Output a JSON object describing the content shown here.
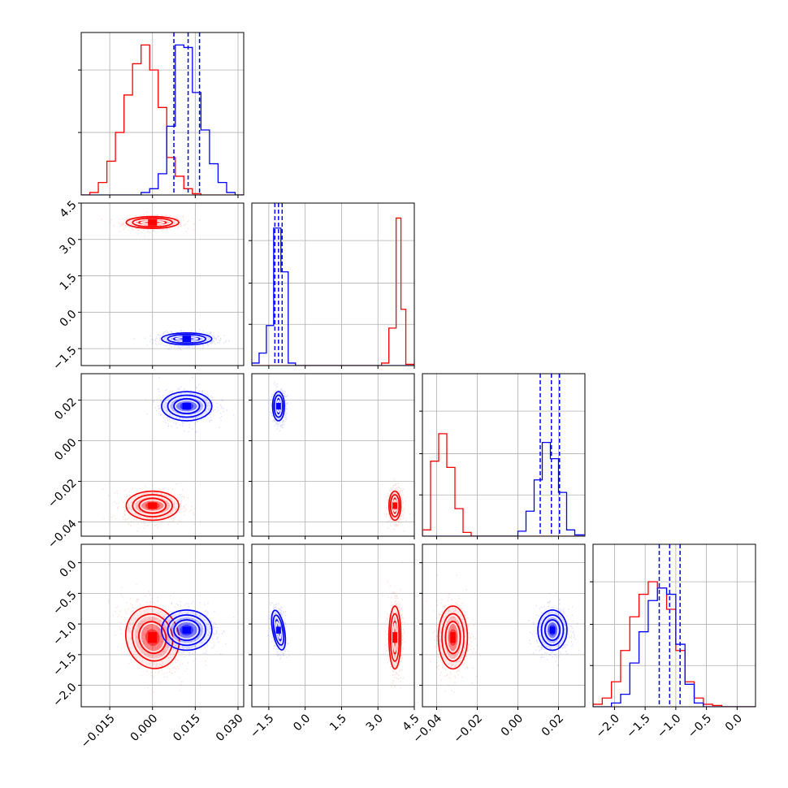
{
  "colors": {
    "red": "#ff0000",
    "blue": "#0000ff",
    "grid": "#b0b0b0",
    "axes": "#000000"
  },
  "chart_data": {
    "type": "corner",
    "grid": true,
    "parameters": [
      {
        "range": [
          -0.025,
          0.032
        ],
        "ticks": [
          "−0.015",
          "0.000",
          "0.015",
          "0.030"
        ],
        "tick_values": [
          -0.015,
          0.0,
          0.015,
          0.03
        ]
      },
      {
        "range": [
          -2.2,
          4.5
        ],
        "ticks": [
          "−1.5",
          "0.0",
          "1.5",
          "3.0",
          "4.5"
        ],
        "tick_values": [
          -1.5,
          0.0,
          1.5,
          3.0,
          4.5
        ]
      },
      {
        "range": [
          -0.047,
          0.033
        ],
        "ticks": [
          "−0.04",
          "−0.02",
          "0.00",
          "0.02"
        ],
        "tick_values": [
          -0.04,
          -0.02,
          0.0,
          0.02
        ]
      },
      {
        "range": [
          -2.35,
          0.3
        ],
        "ticks": [
          "−2.0",
          "−1.5",
          "−1.0",
          "−0.5",
          "0.0"
        ],
        "tick_values": [
          -2.0,
          -1.5,
          -1.0,
          -0.5,
          0.0
        ]
      }
    ],
    "series": [
      {
        "color": "#ff0000",
        "mean": [
          0.0,
          3.7,
          -0.032,
          -1.22
        ],
        "std": [
          0.0045,
          0.12,
          0.0035,
          0.25
        ],
        "corr": {
          "0-3": -0.45
        }
      },
      {
        "color": "#0000ff",
        "mean": [
          0.012,
          -1.1,
          0.017,
          -1.1
        ],
        "std": [
          0.0043,
          0.12,
          0.0035,
          0.16
        ],
        "corr": {
          "1-3": -0.3
        }
      }
    ],
    "histograms": {
      "0": {
        "ylim": [
          0,
          1.3
        ],
        "yticks": [
          0.5,
          1.0
        ],
        "red": {
          "edges": [
            -0.025,
            -0.022,
            -0.019,
            -0.016,
            -0.013,
            -0.01,
            -0.007,
            -0.004,
            -0.001,
            0.002,
            0.005,
            0.008,
            0.011,
            0.014,
            0.017,
            0.02,
            0.023,
            0.026,
            0.029,
            0.032
          ],
          "counts": [
            0,
            0.02,
            0.1,
            0.27,
            0.5,
            0.8,
            1.05,
            1.2,
            1.0,
            0.7,
            0.3,
            0.15,
            0.05,
            0.01,
            0,
            0,
            0,
            0,
            0
          ]
        },
        "blue": {
          "edges": [
            -0.025,
            -0.022,
            -0.019,
            -0.016,
            -0.013,
            -0.01,
            -0.007,
            -0.004,
            -0.001,
            0.002,
            0.005,
            0.008,
            0.011,
            0.014,
            0.017,
            0.02,
            0.023,
            0.026,
            0.029,
            0.032
          ],
          "counts": [
            0,
            0,
            0,
            0,
            0,
            0,
            0,
            0.02,
            0.05,
            0.17,
            0.55,
            1.2,
            1.18,
            0.82,
            0.52,
            0.25,
            0.1,
            0.02,
            0
          ]
        },
        "quantiles": [
          0.0075,
          0.0125,
          0.0165
        ]
      },
      "1": {
        "ylim": [
          0,
          1.3
        ],
        "yticks": [
          0.33,
          0.66,
          1.0
        ],
        "red": {
          "edges": [
            -2.2,
            -1.9,
            -1.6,
            -1.3,
            -1.0,
            -0.7,
            0,
            1,
            2,
            3.15,
            3.45,
            3.75,
            3.95,
            4.15,
            4.5
          ],
          "counts": [
            0,
            0,
            0,
            0,
            0,
            0,
            0,
            0,
            0,
            0.02,
            0.3,
            1.18,
            0.45,
            0.01
          ]
        },
        "blue": {
          "edges": [
            -2.2,
            -1.9,
            -1.6,
            -1.3,
            -1.0,
            -0.7,
            -0.4,
            0,
            1,
            2,
            4.5
          ],
          "counts": [
            0.02,
            0.1,
            0.32,
            1.1,
            0.75,
            0.02,
            0,
            0,
            0,
            0
          ]
        },
        "quantiles": [
          -1.25,
          -1.1,
          -0.95
        ]
      },
      "2": {
        "ylim": [
          0,
          1.3
        ],
        "yticks": [
          0.33,
          0.66,
          1.0
        ],
        "red": {
          "edges": [
            -0.047,
            -0.043,
            -0.039,
            -0.035,
            -0.031,
            -0.027,
            -0.023,
            -0.019,
            -0.015,
            0.0,
            0.033
          ],
          "counts": [
            0.05,
            0.6,
            0.82,
            0.55,
            0.22,
            0.03,
            0,
            0,
            0,
            0
          ]
        },
        "blue": {
          "edges": [
            -0.047,
            0.0,
            0.004,
            0.008,
            0.012,
            0.016,
            0.02,
            0.024,
            0.028,
            0.033
          ],
          "counts": [
            0,
            0.04,
            0.2,
            0.45,
            0.75,
            0.62,
            0.35,
            0.05,
            0.01
          ]
        },
        "quantiles": [
          0.011,
          0.0165,
          0.0205
        ]
      },
      "3": {
        "ylim": [
          0,
          1.3
        ],
        "yticks": [
          0.33,
          0.66,
          1.0
        ],
        "red": {
          "edges": [
            -2.35,
            -2.2,
            -2.05,
            -1.9,
            -1.75,
            -1.6,
            -1.45,
            -1.3,
            -1.15,
            -1.0,
            -0.85,
            -0.7,
            -0.55,
            -0.4,
            -0.25,
            0.3
          ],
          "counts": [
            0.02,
            0.07,
            0.2,
            0.45,
            0.72,
            0.9,
            1.0,
            0.95,
            0.78,
            0.45,
            0.2,
            0.07,
            0.02,
            0.01,
            0
          ]
        },
        "blue": {
          "edges": [
            -2.35,
            -2.05,
            -1.9,
            -1.75,
            -1.6,
            -1.45,
            -1.3,
            -1.15,
            -1.0,
            -0.85,
            -0.7,
            -0.55,
            0.3
          ],
          "counts": [
            0,
            0.03,
            0.1,
            0.35,
            0.6,
            0.85,
            0.95,
            0.9,
            0.5,
            0.18,
            0.03,
            0
          ]
        },
        "quantiles": [
          -1.27,
          -1.1,
          -0.93
        ]
      }
    }
  }
}
